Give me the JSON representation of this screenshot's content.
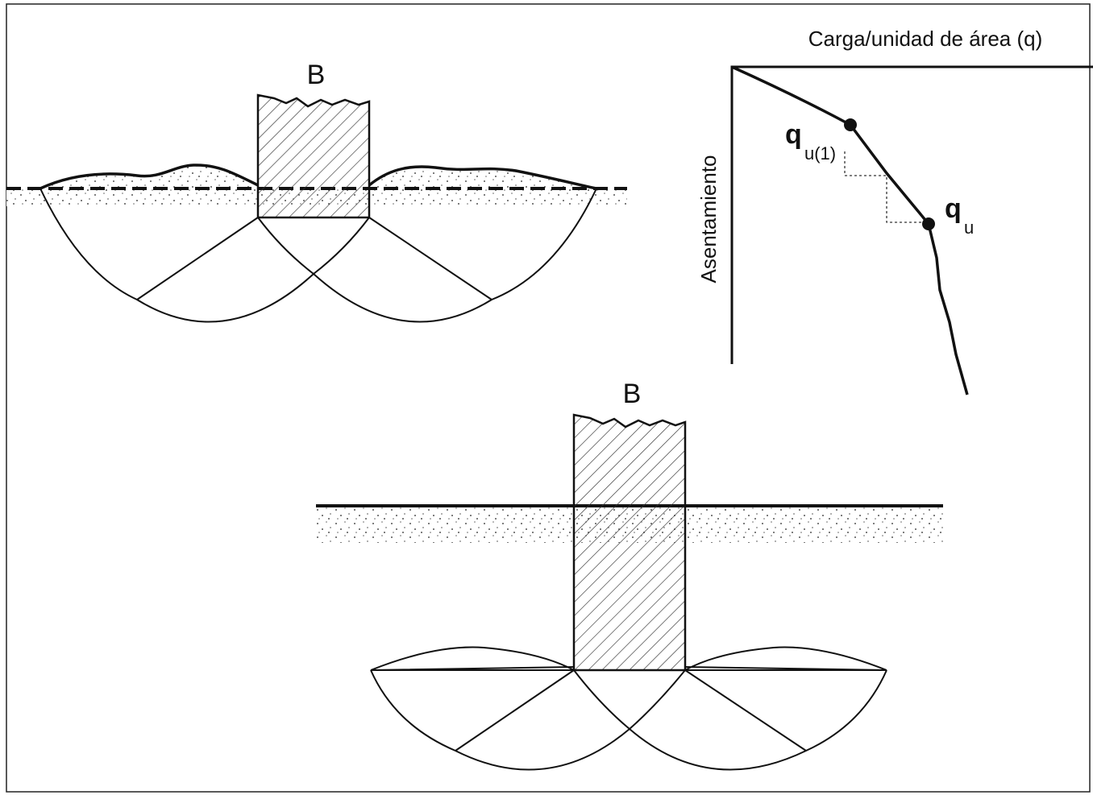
{
  "footings": [
    {
      "label": "B"
    },
    {
      "label": "B"
    }
  ],
  "graph": {
    "x_axis_label": "Carga/unidad de área (q)",
    "y_axis_label": "Asentamiento",
    "points": [
      {
        "symbol": "q",
        "subscript": "u(1)"
      },
      {
        "symbol": "q",
        "subscript": "u"
      }
    ]
  }
}
